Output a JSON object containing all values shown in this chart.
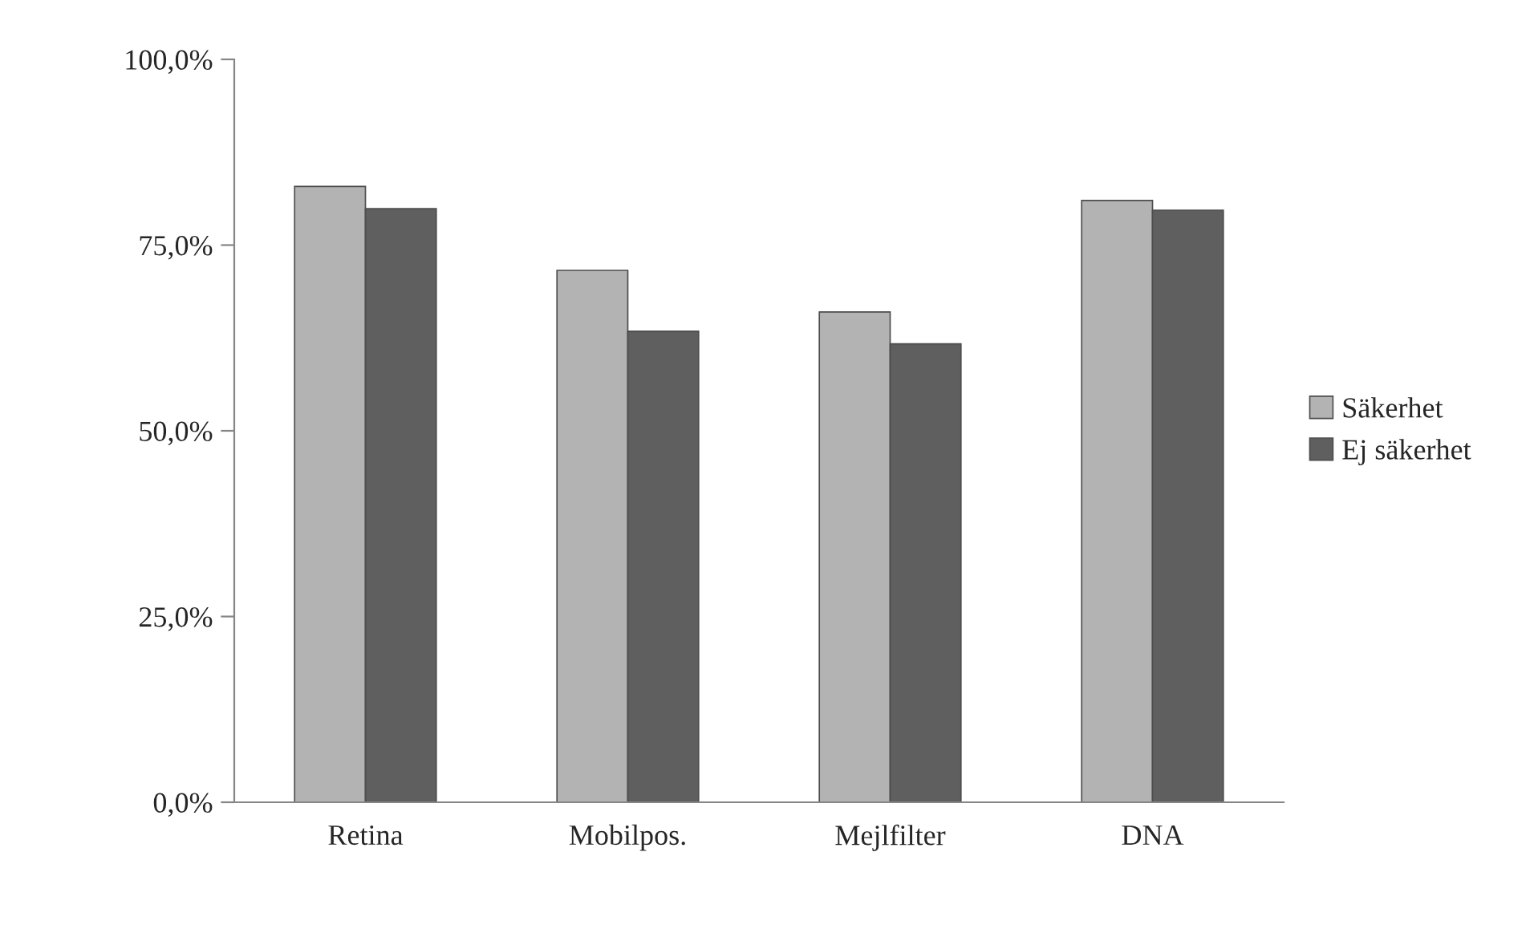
{
  "chart_data": {
    "type": "bar",
    "categories": [
      "Retina",
      "Mobilpos.",
      "Mejlfilter",
      "DNA"
    ],
    "series": [
      {
        "name": "Säkerhet",
        "color": "#b3b3b3",
        "values": [
          82.9,
          71.6,
          66.0,
          81.0
        ]
      },
      {
        "name": "Ej säkerhet",
        "color": "#5f5f5f",
        "values": [
          79.9,
          63.4,
          61.7,
          79.7
        ]
      }
    ],
    "ylim": [
      0,
      100
    ],
    "yticks": [
      {
        "value": 0,
        "label": "0,0%"
      },
      {
        "value": 25,
        "label": "25,0%"
      },
      {
        "value": 50,
        "label": "50,0%"
      },
      {
        "value": 75,
        "label": "75,0%"
      },
      {
        "value": 100,
        "label": "100,0%"
      }
    ],
    "grid": false,
    "legend": "right"
  }
}
